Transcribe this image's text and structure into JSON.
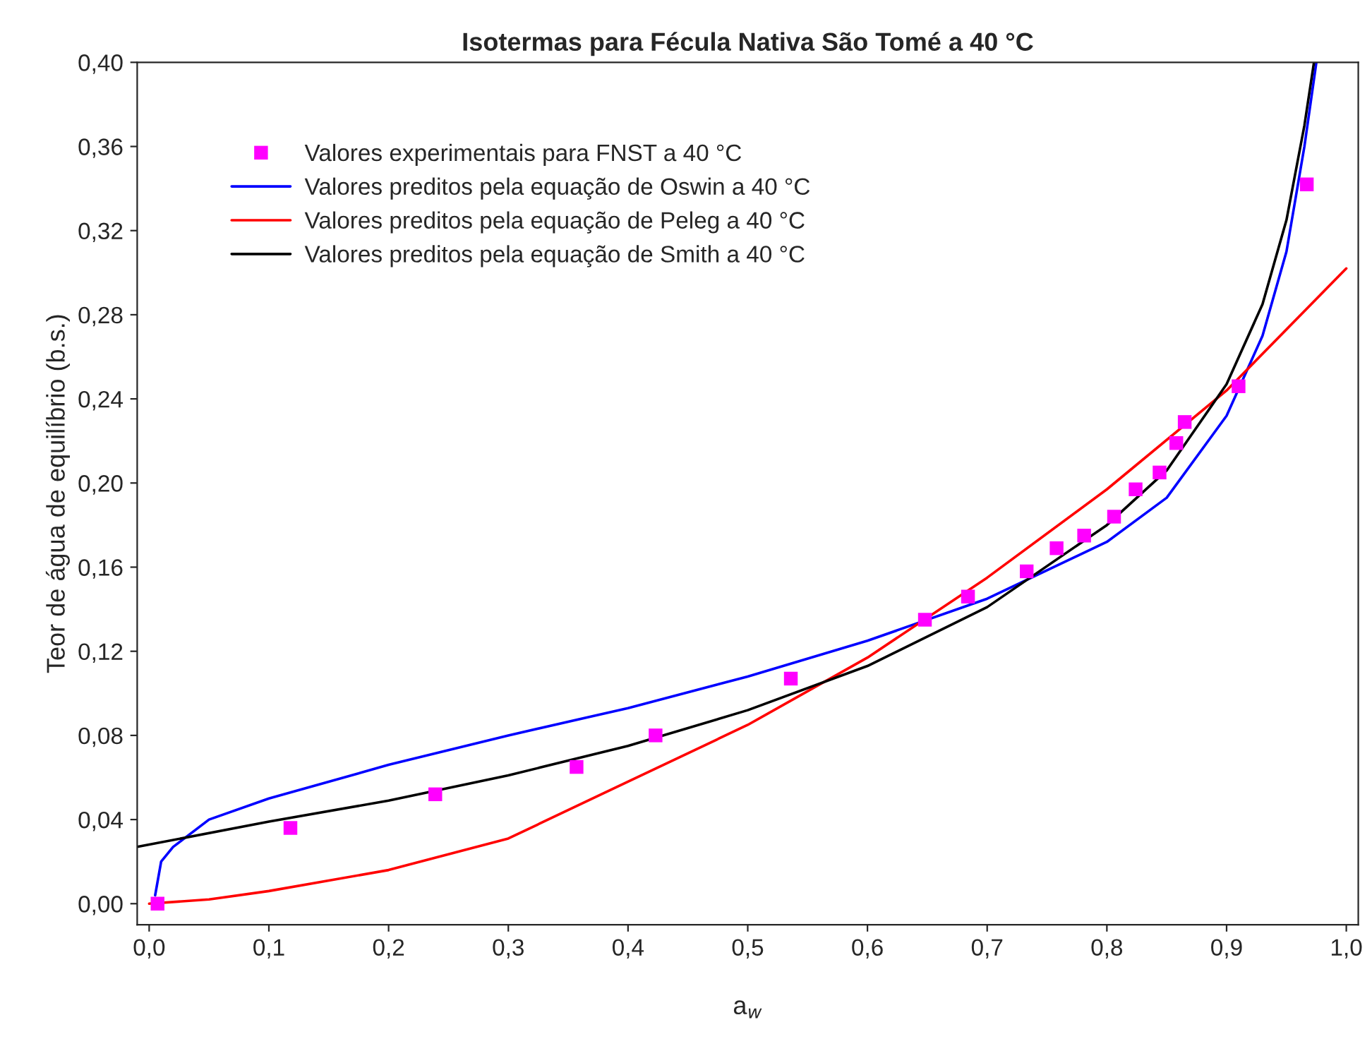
{
  "chart_data": {
    "type": "line",
    "title": "Isotermas para Fécula Nativa São Tomé a 40 °C",
    "xlabel": "a$_{w}$",
    "ylabel": "Teor de água de equilíbrio (b.s.)",
    "xlim": [
      -0.01,
      1.01
    ],
    "ylim": [
      -0.01,
      0.4
    ],
    "xticks": [
      {
        "value": 0,
        "label": "0,0"
      },
      {
        "value": 0.1,
        "label": "0,1"
      },
      {
        "value": 0.2,
        "label": "0,2"
      },
      {
        "value": 0.3,
        "label": "0,3"
      },
      {
        "value": 0.4,
        "label": "0,4"
      },
      {
        "value": 0.5,
        "label": "0,5"
      },
      {
        "value": 0.6,
        "label": "0,6"
      },
      {
        "value": 0.7,
        "label": "0,7"
      },
      {
        "value": 0.8,
        "label": "0,8"
      },
      {
        "value": 0.9,
        "label": "0,9"
      },
      {
        "value": 1.0,
        "label": "1,0"
      }
    ],
    "yticks": [
      {
        "value": 0,
        "label": "0,00"
      },
      {
        "value": 0.04,
        "label": "0,04"
      },
      {
        "value": 0.08,
        "label": "0,08"
      },
      {
        "value": 0.12,
        "label": "0,12"
      },
      {
        "value": 0.16,
        "label": "0,16"
      },
      {
        "value": 0.2,
        "label": "0,20"
      },
      {
        "value": 0.24,
        "label": "0,24"
      },
      {
        "value": 0.28,
        "label": "0,28"
      },
      {
        "value": 0.32,
        "label": "0,32"
      },
      {
        "value": 0.36,
        "label": "0,36"
      },
      {
        "value": 0.4,
        "label": "0,40"
      }
    ],
    "grid": false,
    "legend": "top left",
    "series": [
      {
        "name": "Valores experimentais para FNST a 40 °C",
        "type": "scatter",
        "marker": "square",
        "color": "#ff00ff",
        "x": [
          0.007,
          0.118,
          0.239,
          0.357,
          0.423,
          0.536,
          0.648,
          0.684,
          0.733,
          0.758,
          0.781,
          0.806,
          0.824,
          0.844,
          0.858,
          0.865,
          0.91,
          0.967
        ],
        "values": [
          0.0,
          0.036,
          0.052,
          0.065,
          0.08,
          0.107,
          0.135,
          0.146,
          0.158,
          0.169,
          0.175,
          0.184,
          0.197,
          0.205,
          0.219,
          0.229,
          0.246,
          0.342
        ]
      },
      {
        "name": "Valores preditos pela equação de Oswin a 40 °C",
        "color": "#0000ff",
        "x": [
          0.005,
          0.01,
          0.02,
          0.05,
          0.1,
          0.2,
          0.3,
          0.4,
          0.5,
          0.6,
          0.7,
          0.8,
          0.85,
          0.9,
          0.93,
          0.95,
          0.965,
          0.975
        ],
        "values": [
          0.004,
          0.02,
          0.027,
          0.04,
          0.05,
          0.066,
          0.08,
          0.093,
          0.108,
          0.125,
          0.145,
          0.172,
          0.193,
          0.232,
          0.27,
          0.31,
          0.36,
          0.4
        ]
      },
      {
        "name": "Valores preditos pela equação de Peleg a 40 °C",
        "color": "#ff0000",
        "x": [
          0.0,
          0.05,
          0.1,
          0.2,
          0.3,
          0.4,
          0.5,
          0.6,
          0.7,
          0.8,
          0.9,
          1.0
        ],
        "values": [
          0.0,
          0.002,
          0.006,
          0.016,
          0.031,
          0.058,
          0.085,
          0.117,
          0.155,
          0.197,
          0.244,
          0.302
        ]
      },
      {
        "name": "Valores preditos pela equação de Smith a 40 °C",
        "color": "#000000",
        "x": [
          -0.01,
          0.1,
          0.2,
          0.3,
          0.4,
          0.5,
          0.6,
          0.7,
          0.8,
          0.85,
          0.9,
          0.93,
          0.95,
          0.965,
          0.973
        ],
        "values": [
          0.027,
          0.039,
          0.049,
          0.061,
          0.075,
          0.092,
          0.113,
          0.141,
          0.18,
          0.206,
          0.247,
          0.285,
          0.325,
          0.37,
          0.4
        ]
      }
    ]
  }
}
